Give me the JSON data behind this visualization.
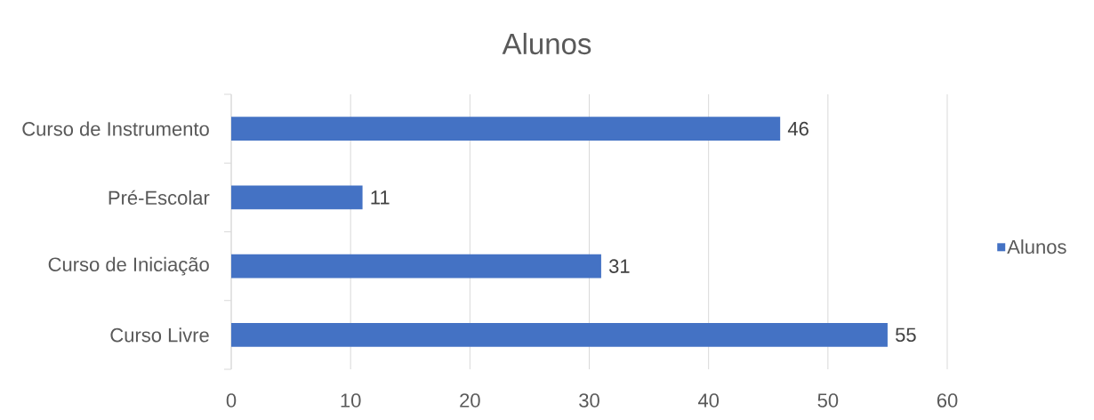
{
  "chart_data": {
    "type": "bar",
    "orientation": "horizontal",
    "title": "Alunos",
    "categories": [
      "Curso de Instrumento",
      "Pré-Escolar",
      "Curso de Iniciação",
      "Curso Livre"
    ],
    "series": [
      {
        "name": "Alunos",
        "color": "#4472c4",
        "values": [
          46,
          11,
          31,
          55
        ]
      }
    ],
    "xlim": [
      0,
      60
    ],
    "xticks": [
      0,
      10,
      20,
      30,
      40,
      50,
      60
    ],
    "grid": "x",
    "legend": "right",
    "data_labels": true
  }
}
